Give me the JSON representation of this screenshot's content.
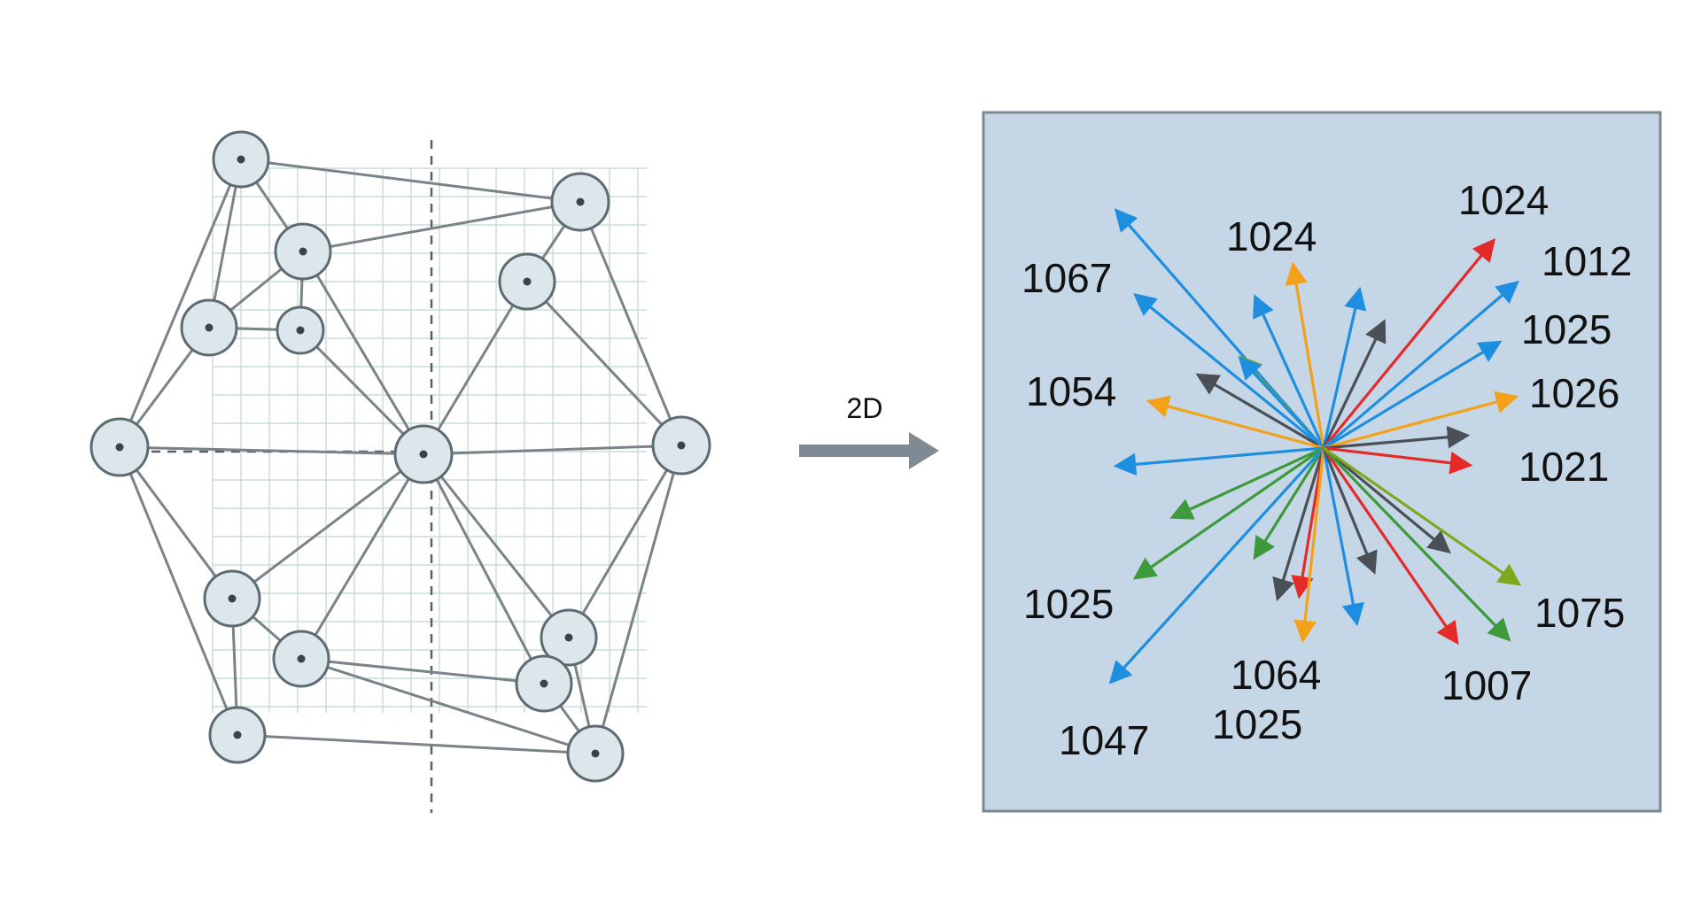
{
  "transform_label": "2D",
  "colors": {
    "blue": "#1e8fe0",
    "orange": "#f4a11a",
    "red": "#e52a2a",
    "green": "#3d9a3a",
    "dark": "#4a5056",
    "olive": "#7ea81c",
    "arrow": "#7f8a92"
  },
  "vector_labels": [
    "1024",
    "1012",
    "1025",
    "1026",
    "1021",
    "1075",
    "1007",
    "1064",
    "1025",
    "1047",
    "1025",
    "1054",
    "1067",
    "1024"
  ]
}
